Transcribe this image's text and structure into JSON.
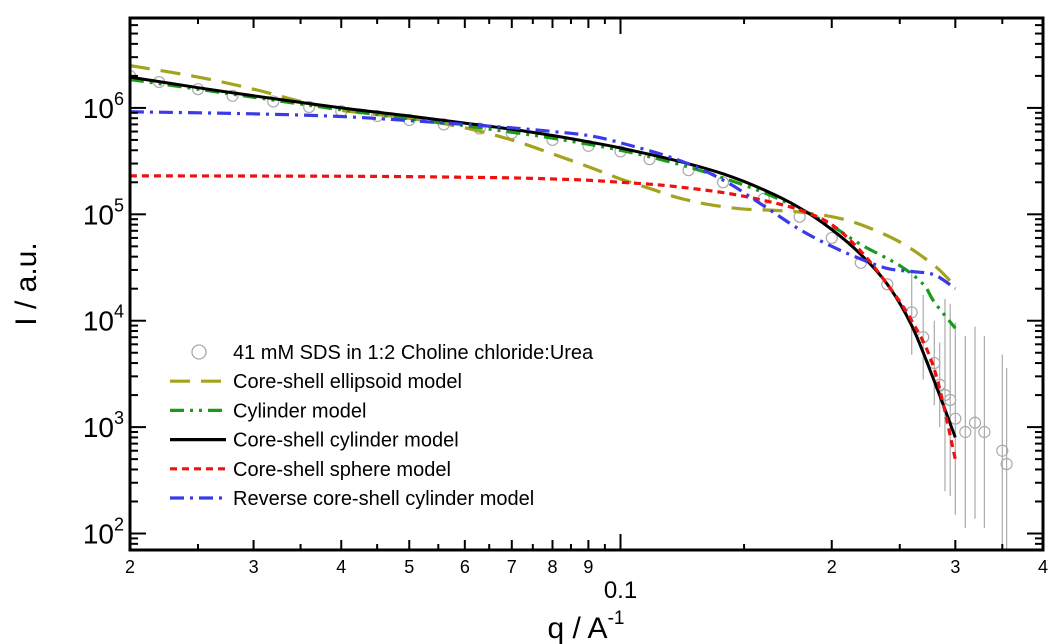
{
  "chart_data": {
    "type": "scatter",
    "title": "",
    "xlabel": "q / A",
    "xlabel_superscript": "-1",
    "ylabel": "I / a.u.",
    "x_scale": "log",
    "y_scale": "log",
    "xlim": [
      0.02,
      0.4
    ],
    "ylim": [
      70,
      7000000
    ],
    "grid": false,
    "legend_position": "lower-left",
    "x_tick_labels": [
      {
        "value": 0.02,
        "label": "2"
      },
      {
        "value": 0.03,
        "label": "3"
      },
      {
        "value": 0.04,
        "label": "4"
      },
      {
        "value": 0.05,
        "label": "5"
      },
      {
        "value": 0.06,
        "label": "6"
      },
      {
        "value": 0.07,
        "label": "7"
      },
      {
        "value": 0.08,
        "label": "8"
      },
      {
        "value": 0.09,
        "label": "9"
      },
      {
        "value": 0.1,
        "label": "0.1"
      },
      {
        "value": 0.2,
        "label": "2"
      },
      {
        "value": 0.3,
        "label": "3"
      },
      {
        "value": 0.4,
        "label": "4"
      }
    ],
    "y_tick_labels": [
      {
        "value": 100,
        "base": "10",
        "exp": "2"
      },
      {
        "value": 1000,
        "base": "10",
        "exp": "3"
      },
      {
        "value": 10000,
        "base": "10",
        "exp": "4"
      },
      {
        "value": 100000,
        "base": "10",
        "exp": "5"
      },
      {
        "value": 1000000,
        "base": "10",
        "exp": "6"
      }
    ],
    "data_series": {
      "name": "41 mM SDS in 1:2 Choline chloride:Urea",
      "color": "#aaaaaa",
      "x": [
        0.02,
        0.022,
        0.025,
        0.028,
        0.032,
        0.036,
        0.04,
        0.045,
        0.05,
        0.056,
        0.063,
        0.07,
        0.08,
        0.09,
        0.1,
        0.11,
        0.125,
        0.14,
        0.16,
        0.18,
        0.2,
        0.22,
        0.24,
        0.26,
        0.27,
        0.28,
        0.285,
        0.29,
        0.295,
        0.3,
        0.31,
        0.32,
        0.33,
        0.35,
        0.355
      ],
      "y": [
        2000000,
        1750000,
        1500000,
        1300000,
        1150000,
        1020000,
        930000,
        840000,
        770000,
        700000,
        640000,
        580000,
        500000,
        440000,
        390000,
        330000,
        260000,
        200000,
        140000,
        95000,
        60000,
        35000,
        22000,
        12000,
        7000,
        4000,
        2500,
        2000,
        1800,
        1200,
        900,
        1100,
        900,
        600,
        450
      ]
    },
    "series": [
      {
        "name": "Core-shell ellipsoid model",
        "color": "#a3a31e",
        "dash": "long-dash",
        "x": [
          0.02,
          0.025,
          0.03,
          0.035,
          0.04,
          0.05,
          0.06,
          0.07,
          0.08,
          0.09,
          0.1,
          0.11,
          0.12,
          0.13,
          0.14,
          0.15,
          0.16,
          0.17,
          0.18,
          0.2,
          0.22,
          0.25,
          0.28,
          0.3
        ],
        "y": [
          2500000,
          1950000,
          1500000,
          1150000,
          950000,
          800000,
          650000,
          500000,
          370000,
          280000,
          215000,
          175000,
          145000,
          128000,
          118000,
          112000,
          110000,
          108000,
          105000,
          95000,
          80000,
          55000,
          33000,
          21000
        ]
      },
      {
        "name": "Cylinder model",
        "color": "#1a9a1a",
        "dash": "dash-dot-dot",
        "x": [
          0.02,
          0.025,
          0.03,
          0.04,
          0.05,
          0.06,
          0.07,
          0.08,
          0.1,
          0.12,
          0.14,
          0.16,
          0.18,
          0.2,
          0.22,
          0.25,
          0.27,
          0.28,
          0.3
        ],
        "y": [
          1850000,
          1500000,
          1260000,
          960000,
          790000,
          680000,
          590000,
          520000,
          400000,
          300000,
          220000,
          160000,
          113000,
          78000,
          52000,
          33000,
          22000,
          15000,
          8500
        ]
      },
      {
        "name": "Core-shell cylinder model",
        "color": "#000000",
        "dash": "solid",
        "x": [
          0.02,
          0.025,
          0.03,
          0.04,
          0.05,
          0.06,
          0.07,
          0.08,
          0.09,
          0.1,
          0.12,
          0.14,
          0.16,
          0.18,
          0.2,
          0.22,
          0.24,
          0.26,
          0.28,
          0.3
        ],
        "y": [
          1950000,
          1550000,
          1300000,
          1000000,
          840000,
          720000,
          630000,
          550000,
          480000,
          420000,
          320000,
          240000,
          170000,
          115000,
          72000,
          42000,
          22000,
          9000,
          2700,
          800
        ]
      },
      {
        "name": "Core-shell sphere model",
        "color": "#ee1111",
        "dash": "short-dash",
        "x": [
          0.02,
          0.03,
          0.04,
          0.05,
          0.06,
          0.07,
          0.08,
          0.09,
          0.1,
          0.11,
          0.12,
          0.14,
          0.16,
          0.18,
          0.2,
          0.22,
          0.24,
          0.26,
          0.28,
          0.3
        ],
        "y": [
          230000,
          229000,
          228000,
          226000,
          223000,
          220000,
          215000,
          209000,
          200000,
          192000,
          182000,
          160000,
          135000,
          110000,
          80000,
          45000,
          22000,
          10000,
          3500,
          500
        ]
      },
      {
        "name": "Reverse core-shell cylinder model",
        "color": "#3a3ae8",
        "dash": "dash-dot",
        "x": [
          0.02,
          0.03,
          0.04,
          0.05,
          0.06,
          0.07,
          0.08,
          0.09,
          0.1,
          0.12,
          0.14,
          0.16,
          0.18,
          0.2,
          0.22,
          0.24,
          0.26,
          0.28,
          0.3
        ],
        "y": [
          920000,
          880000,
          830000,
          760000,
          700000,
          650000,
          600000,
          550000,
          470000,
          330000,
          210000,
          120000,
          72000,
          50000,
          38000,
          31000,
          29000,
          27000,
          20000
        ]
      }
    ]
  }
}
